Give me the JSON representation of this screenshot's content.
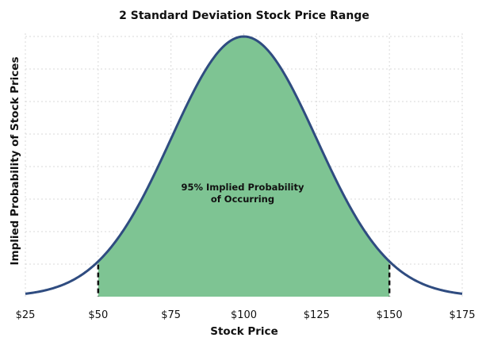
{
  "chart_data": {
    "type": "area",
    "title": "2 Standard Deviation Stock Price Range",
    "xlabel": "Stock Price",
    "ylabel": "Implied Probability of Stock Prices",
    "distribution": "normal",
    "mean": 100,
    "std_dev": 25,
    "xlim": [
      25,
      175
    ],
    "shaded_range": [
      50,
      150
    ],
    "x_ticks": [
      25,
      50,
      75,
      100,
      125,
      150,
      175
    ],
    "x_tick_labels": [
      "$25",
      "$50",
      "$75",
      "$100",
      "$125",
      "$150",
      "$175"
    ],
    "annotation": [
      "95% Implied Probability",
      "of Occurring"
    ],
    "grid": true,
    "colors": {
      "curve": "#2f4c80",
      "fill": "#7ec493",
      "boundary": "#111111"
    }
  }
}
